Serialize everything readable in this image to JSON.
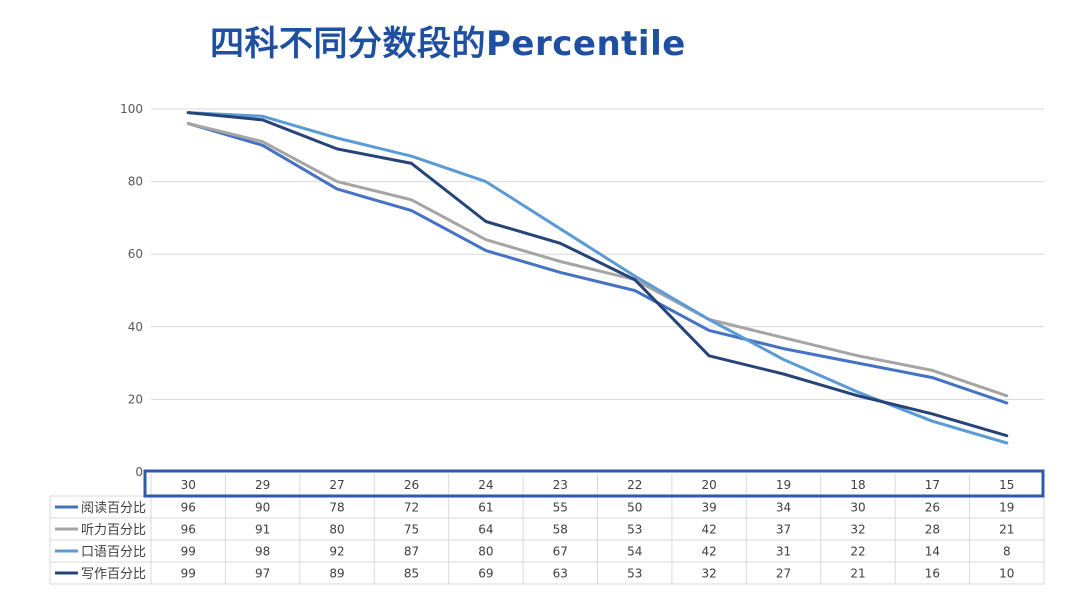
{
  "title": "四科不同分数段的Percentile",
  "chart_data": {
    "type": "line",
    "title": "四科不同分数段的Percentile",
    "categories": [
      "30",
      "29",
      "27",
      "26",
      "24",
      "23",
      "22",
      "20",
      "19",
      "18",
      "17",
      "15"
    ],
    "ylim": [
      0,
      100
    ],
    "yticks": [
      0,
      20,
      40,
      60,
      80,
      100
    ],
    "grid": true,
    "legend": "data-table",
    "series": [
      {
        "name": "阅读百分比",
        "color": "#4472c4",
        "values": [
          96,
          90,
          78,
          72,
          61,
          55,
          50,
          39,
          34,
          30,
          26,
          19
        ]
      },
      {
        "name": "听力百分比",
        "color": "#a5a5a5",
        "values": [
          96,
          91,
          80,
          75,
          64,
          58,
          53,
          42,
          37,
          32,
          28,
          21
        ]
      },
      {
        "name": "口语百分比",
        "color": "#5b9bd5",
        "values": [
          99,
          98,
          92,
          87,
          80,
          67,
          54,
          42,
          31,
          22,
          14,
          8
        ]
      },
      {
        "name": "写作百分比",
        "color": "#264478",
        "values": [
          99,
          97,
          89,
          85,
          69,
          63,
          53,
          32,
          27,
          21,
          16,
          10
        ]
      }
    ],
    "highlight_color": "#2e5aa8"
  }
}
